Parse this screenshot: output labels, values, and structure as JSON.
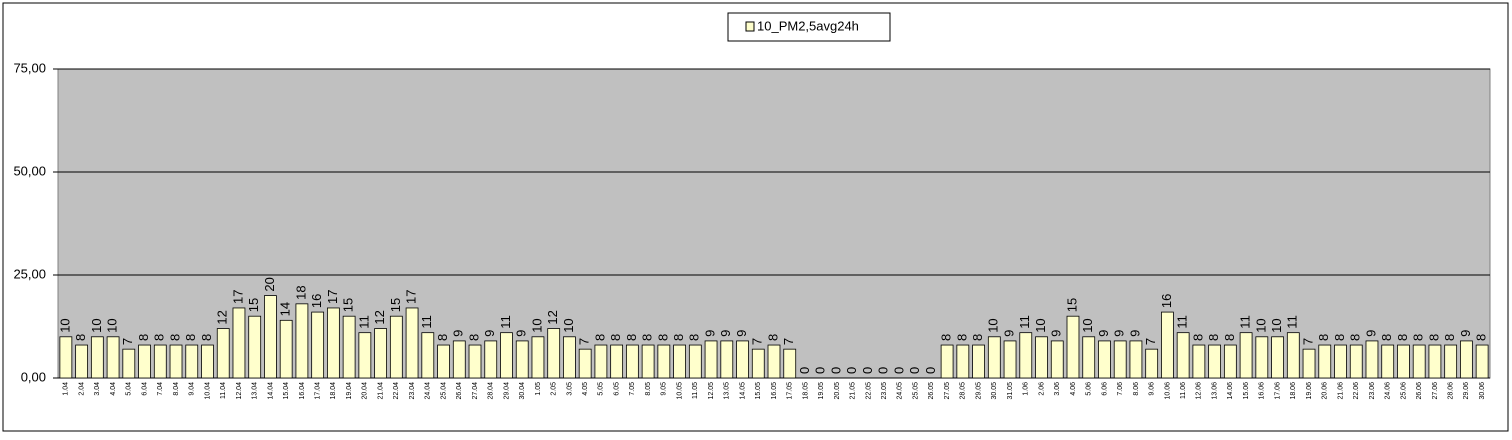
{
  "chart_data": {
    "type": "bar",
    "series": [
      {
        "name": "10_PM2,5avg24h",
        "color": "#ffffcc",
        "values": [
          10,
          8,
          10,
          10,
          7,
          8,
          8,
          8,
          8,
          8,
          12,
          17,
          15,
          20,
          14,
          18,
          16,
          17,
          15,
          11,
          12,
          15,
          17,
          11,
          8,
          9,
          8,
          9,
          11,
          9,
          10,
          12,
          10,
          7,
          8,
          8,
          8,
          8,
          8,
          8,
          8,
          9,
          9,
          9,
          7,
          8,
          7,
          0,
          0,
          0,
          0,
          0,
          0,
          0,
          0,
          0,
          8,
          8,
          8,
          10,
          9,
          11,
          10,
          9,
          15,
          10,
          9,
          9,
          9,
          7,
          16,
          11,
          8,
          8,
          8,
          11,
          10,
          10,
          11,
          7,
          8,
          8,
          8,
          9,
          8,
          8,
          8,
          8,
          8,
          9,
          8
        ]
      }
    ],
    "categories": [
      "1.04",
      "2.04",
      "3.04",
      "4.04",
      "5.04",
      "6.04",
      "7.04",
      "8.04",
      "9.04",
      "10.04",
      "11.04",
      "12.04",
      "13.04",
      "14.04",
      "15.04",
      "16.04",
      "17.04",
      "18.04",
      "19.04",
      "20.04",
      "21.04",
      "22.04",
      "23.04",
      "24.04",
      "25.04",
      "26.04",
      "27.04",
      "28.04",
      "29.04",
      "30.04",
      "1.05",
      "2.05",
      "3.05",
      "4.05",
      "5.05",
      "6.05",
      "7.05",
      "8.05",
      "9.05",
      "10.05",
      "11.05",
      "12.05",
      "13.05",
      "14.05",
      "15.05",
      "16.05",
      "17.05",
      "18.05",
      "19.05",
      "20.05",
      "21.05",
      "22.05",
      "23.05",
      "24.05",
      "25.05",
      "26.05",
      "27.05",
      "28.05",
      "29.05",
      "30.05",
      "31.05",
      "1.06",
      "2.06",
      "3.06",
      "4.06",
      "5.06",
      "6.06",
      "7.06",
      "8.06",
      "9.06",
      "10.06",
      "11.06",
      "12.06",
      "13.06",
      "14.06",
      "15.06",
      "16.06",
      "17.06",
      "18.06",
      "19.06",
      "20.06",
      "21.06",
      "22.06",
      "23.06",
      "24.06",
      "25.06",
      "26.06",
      "27.06",
      "28.06",
      "29.06",
      "30.06"
    ],
    "ylim": [
      0,
      75
    ],
    "yticks": [
      {
        "value": 0,
        "label": "0,00"
      },
      {
        "value": 25,
        "label": "25,00"
      },
      {
        "value": 50,
        "label": "50,00"
      },
      {
        "value": 75,
        "label": "75,00"
      }
    ],
    "grid": true,
    "plot_background": "#c0c0c0",
    "legend": "top"
  }
}
